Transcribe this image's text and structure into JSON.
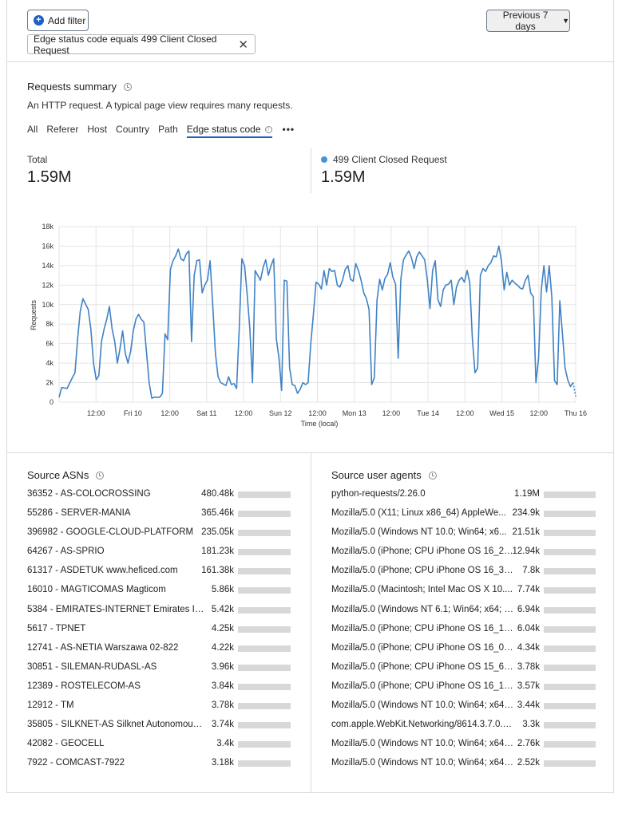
{
  "filters": {
    "add_label": "Add filter",
    "active": "Edge status code equals 499 Client Closed Request",
    "period": "Previous 7 days"
  },
  "summary": {
    "title": "Requests summary",
    "description": "An HTTP request. A typical page view requires many requests.",
    "tabs": [
      "All",
      "Referer",
      "Host",
      "Country",
      "Path",
      "Edge status code"
    ],
    "more": "•••",
    "total_label": "Total",
    "total_value": "1.59M",
    "series_label": "499 Client Closed Request",
    "series_value": "1.59M",
    "series_color": "#4a90d9"
  },
  "chart_data": {
    "type": "line",
    "ylabel": "Requests",
    "xlabel": "Time (local)",
    "ylim": [
      0,
      18000
    ],
    "yticks": [
      "0",
      "2k",
      "4k",
      "6k",
      "8k",
      "10k",
      "12k",
      "14k",
      "16k",
      "18k"
    ],
    "xlim": [
      0,
      168
    ],
    "xticks": [
      {
        "t": 12,
        "label": "12:00"
      },
      {
        "t": 24,
        "label": "Fri 10"
      },
      {
        "t": 36,
        "label": "12:00"
      },
      {
        "t": 48,
        "label": "Sat 11"
      },
      {
        "t": 60,
        "label": "12:00"
      },
      {
        "t": 72,
        "label": "Sun 12"
      },
      {
        "t": 84,
        "label": "12:00"
      },
      {
        "t": 96,
        "label": "Mon 13"
      },
      {
        "t": 108,
        "label": "12:00"
      },
      {
        "t": 120,
        "label": "Tue 14"
      },
      {
        "t": 132,
        "label": "12:00"
      },
      {
        "t": 144,
        "label": "Wed 15"
      },
      {
        "t": 156,
        "label": "12:00"
      },
      {
        "t": 168,
        "label": "Thu 16"
      }
    ],
    "series": [
      {
        "color": "#3f82c5",
        "points": [
          [
            0,
            500
          ],
          [
            0.6,
            1500
          ],
          [
            1.8,
            1400
          ],
          [
            3,
            2500
          ],
          [
            3.6,
            3000
          ],
          [
            4.2,
            6500
          ],
          [
            4.8,
            9300
          ],
          [
            5.4,
            10600
          ],
          [
            6.6,
            9500
          ],
          [
            7.2,
            7500
          ],
          [
            7.8,
            4000
          ],
          [
            8.4,
            2300
          ],
          [
            9,
            2700
          ],
          [
            9.6,
            6200
          ],
          [
            10.2,
            7500
          ],
          [
            10.8,
            8500
          ],
          [
            11.4,
            9800
          ],
          [
            12,
            7500
          ],
          [
            12.6,
            6200
          ],
          [
            13.2,
            4000
          ],
          [
            13.8,
            5500
          ],
          [
            14.4,
            7300
          ],
          [
            15,
            5000
          ],
          [
            15.6,
            4000
          ],
          [
            16.2,
            5200
          ],
          [
            16.8,
            7300
          ],
          [
            17.4,
            8500
          ],
          [
            18,
            9000
          ],
          [
            18.6,
            8500
          ],
          [
            19.2,
            8200
          ],
          [
            20.4,
            2000
          ],
          [
            21,
            400
          ],
          [
            21.6,
            500
          ],
          [
            22.8,
            500
          ],
          [
            23.4,
            900
          ],
          [
            24,
            7000
          ],
          [
            24.6,
            6400
          ],
          [
            25.2,
            13600
          ],
          [
            25.8,
            14500
          ],
          [
            26.4,
            15000
          ],
          [
            27,
            15700
          ],
          [
            27.6,
            14700
          ],
          [
            28.2,
            14500
          ],
          [
            28.8,
            15200
          ],
          [
            29.4,
            15500
          ],
          [
            30,
            6200
          ],
          [
            30.6,
            13000
          ],
          [
            31.2,
            14500
          ],
          [
            31.8,
            14600
          ],
          [
            32.4,
            11200
          ],
          [
            33,
            12000
          ],
          [
            33.6,
            12500
          ],
          [
            34.2,
            14500
          ],
          [
            34.8,
            10000
          ],
          [
            35.4,
            5000
          ],
          [
            36,
            2600
          ],
          [
            36.6,
            2000
          ],
          [
            37.8,
            1700
          ],
          [
            38.4,
            2600
          ],
          [
            39,
            1800
          ],
          [
            39.6,
            1900
          ],
          [
            40.2,
            1400
          ],
          [
            40.8,
            7500
          ],
          [
            41.4,
            14700
          ],
          [
            42,
            14000
          ],
          [
            42.6,
            11000
          ],
          [
            43.2,
            7500
          ],
          [
            43.8,
            2000
          ],
          [
            44.4,
            13500
          ],
          [
            45,
            13000
          ],
          [
            45.6,
            12500
          ],
          [
            46.2,
            13800
          ],
          [
            46.8,
            14600
          ],
          [
            47.4,
            13000
          ],
          [
            48,
            14000
          ],
          [
            48.6,
            14700
          ],
          [
            49.2,
            6500
          ],
          [
            49.8,
            4500
          ],
          [
            50.4,
            1200
          ],
          [
            51,
            12500
          ],
          [
            51.6,
            12400
          ],
          [
            52.2,
            3500
          ],
          [
            52.8,
            1800
          ],
          [
            53.4,
            1700
          ],
          [
            54,
            900
          ],
          [
            54.6,
            1300
          ],
          [
            55.2,
            2000
          ],
          [
            55.8,
            1800
          ],
          [
            56.4,
            2000
          ],
          [
            57,
            6000
          ],
          [
            57.6,
            9000
          ],
          [
            58.2,
            12300
          ],
          [
            58.8,
            12100
          ],
          [
            59.4,
            11600
          ],
          [
            60,
            13500
          ],
          [
            60.6,
            12000
          ],
          [
            61.2,
            13700
          ],
          [
            61.8,
            13400
          ],
          [
            62.4,
            13500
          ],
          [
            63,
            12000
          ],
          [
            63.6,
            11800
          ],
          [
            64.2,
            12500
          ],
          [
            64.8,
            13600
          ],
          [
            65.4,
            14000
          ],
          [
            66,
            12600
          ],
          [
            66.6,
            12400
          ],
          [
            67.2,
            14200
          ],
          [
            67.8,
            13500
          ],
          [
            68.4,
            12500
          ],
          [
            69,
            11200
          ],
          [
            69.6,
            10600
          ],
          [
            70.2,
            9500
          ],
          [
            70.8,
            1800
          ],
          [
            71.4,
            2500
          ],
          [
            72,
            10500
          ],
          [
            72.6,
            12600
          ],
          [
            73.2,
            11500
          ],
          [
            73.8,
            12700
          ],
          [
            74.4,
            13100
          ],
          [
            75,
            14300
          ],
          [
            75.6,
            12800
          ],
          [
            76.2,
            12100
          ],
          [
            76.8,
            4500
          ],
          [
            77.4,
            12600
          ],
          [
            78,
            14600
          ],
          [
            78.6,
            15100
          ],
          [
            79.2,
            15500
          ],
          [
            79.8,
            14800
          ],
          [
            80.4,
            13700
          ],
          [
            81,
            14900
          ],
          [
            81.6,
            15400
          ],
          [
            82.2,
            15000
          ],
          [
            82.8,
            14600
          ],
          [
            83.4,
            12500
          ],
          [
            84,
            9600
          ],
          [
            84.6,
            13500
          ],
          [
            85.2,
            14500
          ],
          [
            85.8,
            10500
          ],
          [
            86.4,
            9800
          ],
          [
            87,
            11500
          ],
          [
            87.6,
            12000
          ],
          [
            88.2,
            12100
          ],
          [
            88.8,
            12500
          ],
          [
            89.4,
            10000
          ],
          [
            90,
            11800
          ],
          [
            90.6,
            12500
          ],
          [
            91.2,
            12800
          ],
          [
            91.8,
            12300
          ],
          [
            92.4,
            13500
          ],
          [
            93,
            12300
          ],
          [
            93.6,
            6500
          ],
          [
            94.2,
            3000
          ],
          [
            94.8,
            3500
          ],
          [
            95.4,
            13000
          ],
          [
            96,
            13700
          ],
          [
            96.6,
            13400
          ],
          [
            97.2,
            14000
          ],
          [
            97.8,
            14300
          ],
          [
            98.4,
            15000
          ],
          [
            99,
            14900
          ],
          [
            99.6,
            16000
          ],
          [
            100.2,
            14400
          ],
          [
            100.8,
            11500
          ],
          [
            101.4,
            13300
          ],
          [
            102,
            12000
          ],
          [
            102.6,
            12500
          ],
          [
            103.2,
            12200
          ],
          [
            103.8,
            12000
          ],
          [
            104.4,
            11700
          ],
          [
            105,
            11600
          ],
          [
            105.6,
            12500
          ],
          [
            106.2,
            13000
          ],
          [
            106.8,
            11200
          ],
          [
            107.4,
            10800
          ],
          [
            108,
            2000
          ],
          [
            108.6,
            4500
          ],
          [
            109.2,
            11500
          ],
          [
            109.8,
            14000
          ],
          [
            110.4,
            11300
          ],
          [
            111,
            14000
          ],
          [
            111.6,
            10800
          ],
          [
            112.2,
            2200
          ],
          [
            112.8,
            1800
          ],
          [
            113.4,
            10400
          ],
          [
            114,
            7000
          ],
          [
            114.6,
            3500
          ],
          [
            115.2,
            2300
          ],
          [
            115.8,
            1600
          ],
          [
            116.4,
            2000
          ],
          [
            117.0,
            600
          ]
        ],
        "dashed_tail": [
          [
            116.4,
            2000
          ],
          [
            117.0,
            600
          ]
        ]
      }
    ]
  },
  "asns": {
    "title": "Source ASNs",
    "rows": [
      {
        "label": "36352 - AS-COLOCROSSING",
        "value": "480.48k",
        "fraction": 0.302
      },
      {
        "label": "55286 - SERVER-MANIA",
        "value": "365.46k",
        "fraction": 0.23
      },
      {
        "label": "396982 - GOOGLE-CLOUD-PLATFORM",
        "value": "235.05k",
        "fraction": 0.148
      },
      {
        "label": "64267 - AS-SPRIO",
        "value": "181.23k",
        "fraction": 0.114
      },
      {
        "label": "61317 - ASDETUK www.heficed.com",
        "value": "161.38k",
        "fraction": 0.101
      },
      {
        "label": "16010 - MAGTICOMAS Magticom",
        "value": "5.86k",
        "fraction": 0.004
      },
      {
        "label": "5384 - EMIRATES-INTERNET Emirates Inter...",
        "value": "5.42k",
        "fraction": 0.003
      },
      {
        "label": "5617 - TPNET",
        "value": "4.25k",
        "fraction": 0.003
      },
      {
        "label": "12741 - AS-NETIA Warszawa 02-822",
        "value": "4.22k",
        "fraction": 0.003
      },
      {
        "label": "30851 - SILEMAN-RUDASL-AS",
        "value": "3.96k",
        "fraction": 0.002
      },
      {
        "label": "12389 - ROSTELECOM-AS",
        "value": "3.84k",
        "fraction": 0.002
      },
      {
        "label": "12912 - TM",
        "value": "3.78k",
        "fraction": 0.002
      },
      {
        "label": "35805 - SILKNET-AS Silknet Autonomous ...",
        "value": "3.74k",
        "fraction": 0.002
      },
      {
        "label": "42082 - GEOCELL",
        "value": "3.4k",
        "fraction": 0.002
      },
      {
        "label": "7922 - COMCAST-7922",
        "value": "3.18k",
        "fraction": 0.002
      }
    ]
  },
  "agents": {
    "title": "Source user agents",
    "rows": [
      {
        "label": "python-requests/2.26.0",
        "value": "1.19M",
        "fraction": 0.748
      },
      {
        "label": "Mozilla/5.0 (X11; Linux x86_64) AppleWe...",
        "value": "234.9k",
        "fraction": 0.148
      },
      {
        "label": "Mozilla/5.0 (Windows NT 10.0; Win64; x6...",
        "value": "21.51k",
        "fraction": 0.014
      },
      {
        "label": "Mozilla/5.0 (iPhone; CPU iPhone OS 16_2 ...",
        "value": "12.94k",
        "fraction": 0.008
      },
      {
        "label": "Mozilla/5.0 (iPhone; CPU iPhone OS 16_3 lik...",
        "value": "7.8k",
        "fraction": 0.005
      },
      {
        "label": "Mozilla/5.0 (Macintosh; Intel Mac OS X 10....",
        "value": "7.74k",
        "fraction": 0.005
      },
      {
        "label": "Mozilla/5.0 (Windows NT 6.1; Win64; x64; r...",
        "value": "6.94k",
        "fraction": 0.004
      },
      {
        "label": "Mozilla/5.0 (iPhone; CPU iPhone OS 16_1_...",
        "value": "6.04k",
        "fraction": 0.004
      },
      {
        "label": "Mozilla/5.0 (iPhone; CPU iPhone OS 16_0 li...",
        "value": "4.34k",
        "fraction": 0.003
      },
      {
        "label": "Mozilla/5.0 (iPhone; CPU iPhone OS 15_6_...",
        "value": "3.78k",
        "fraction": 0.002
      },
      {
        "label": "Mozilla/5.0 (iPhone; CPU iPhone OS 16_1_...",
        "value": "3.57k",
        "fraction": 0.002
      },
      {
        "label": "Mozilla/5.0 (Windows NT 10.0; Win64; x64;...",
        "value": "3.44k",
        "fraction": 0.002
      },
      {
        "label": "com.apple.WebKit.Networking/8614.3.7.0.6 ...",
        "value": "3.3k",
        "fraction": 0.002
      },
      {
        "label": "Mozilla/5.0 (Windows NT 10.0; Win64; x64;...",
        "value": "2.76k",
        "fraction": 0.002
      },
      {
        "label": "Mozilla/5.0 (Windows NT 10.0; Win64; x64)...",
        "value": "2.52k",
        "fraction": 0.002
      }
    ]
  }
}
